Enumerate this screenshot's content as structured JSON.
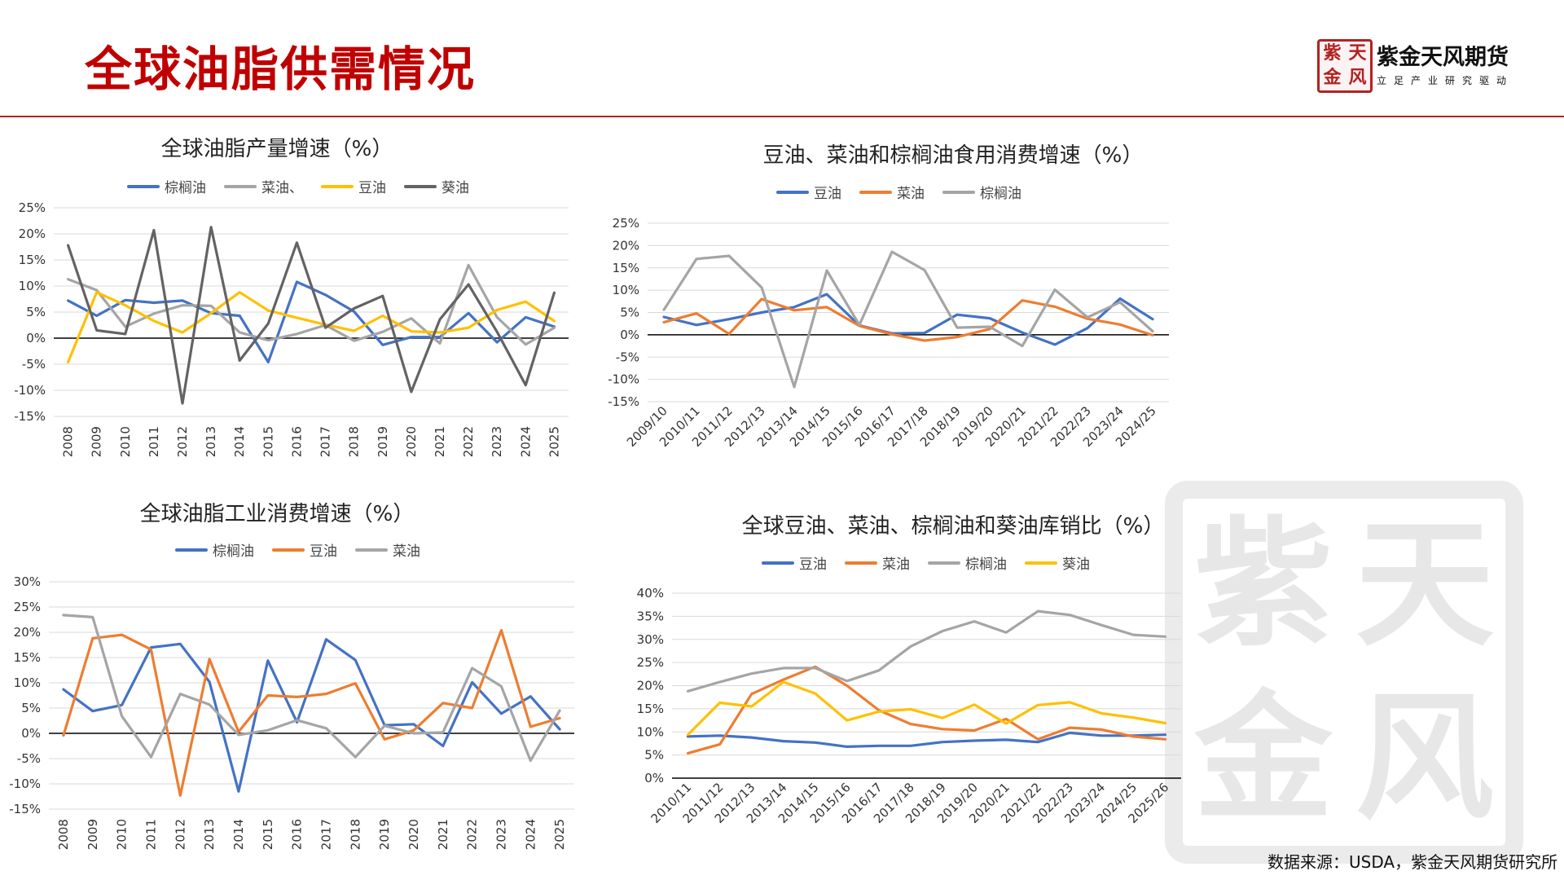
{
  "header": {
    "title": "全球油脂供需情况",
    "logo_seal": [
      "紫",
      "天",
      "金",
      "风"
    ],
    "logo_name": "紫金天风期货",
    "logo_slogan": "立足产业研究驱动"
  },
  "watermark_chars": [
    "紫",
    "天",
    "金",
    "风"
  ],
  "source": "数据来源：USDA，紫金天风期货研究所",
  "colors": {
    "palm": "#4472c4",
    "rapeseed": "#a5a5a5",
    "soy": "#ffc000",
    "sun": "#636363",
    "orange": "#ed7d31",
    "title_red": "#c00000"
  },
  "chart_data": [
    {
      "type": "line",
      "title": "全球油脂产量增速（%）",
      "x": [
        "2008",
        "2009",
        "2010",
        "2011",
        "2012",
        "2013",
        "2014",
        "2015",
        "2016",
        "2017",
        "2018",
        "2019",
        "2020",
        "2021",
        "2022",
        "2023",
        "2024",
        "2025"
      ],
      "ylim": [
        -15,
        25
      ],
      "yticks": [
        "-15%",
        "-10%",
        "-5%",
        "0%",
        "5%",
        "10%",
        "15%",
        "20%",
        "25%"
      ],
      "grid": true,
      "legend": "top",
      "series": [
        {
          "name": "棕榈油",
          "color": "#4472c4",
          "values": [
            7.2,
            4.3,
            7.3,
            6.8,
            7.2,
            4.8,
            4.3,
            -4.6,
            10.8,
            8.3,
            5.1,
            -1.3,
            0.2,
            0.2,
            4.8,
            -0.8,
            4.0,
            2.2
          ]
        },
        {
          "name": "菜油、",
          "color": "#a5a5a5",
          "values": [
            11.3,
            9.2,
            2.2,
            4.7,
            6.3,
            6.2,
            1.1,
            -0.4,
            0.8,
            2.5,
            -0.5,
            1.2,
            3.8,
            -1.0,
            14.0,
            4.0,
            -1.2,
            2.0
          ]
        },
        {
          "name": "豆油",
          "color": "#ffc000",
          "values": [
            -4.6,
            8.8,
            6.3,
            3.3,
            1.1,
            4.8,
            8.8,
            5.3,
            3.9,
            2.6,
            1.4,
            4.3,
            1.3,
            1.1,
            2.0,
            5.4,
            7.0,
            3.3
          ]
        },
        {
          "name": "葵油",
          "color": "#636363",
          "values": [
            17.8,
            1.5,
            0.8,
            20.7,
            -12.5,
            21.3,
            -4.3,
            2.8,
            18.3,
            2.0,
            5.7,
            8.1,
            -10.3,
            3.6,
            10.3,
            1.2,
            -9.0,
            8.7
          ]
        }
      ]
    },
    {
      "type": "line",
      "title": "豆油、菜油和棕榈油食用消费增速（%）",
      "x": [
        "2009/10",
        "2010/11",
        "2011/12",
        "2012/13",
        "2013/14",
        "2014/15",
        "2015/16",
        "2016/17",
        "2017/18",
        "2018/19",
        "2019/20",
        "2020/21",
        "2021/22",
        "2022/23",
        "2023/24",
        "2024/25"
      ],
      "ylim": [
        -15,
        25
      ],
      "yticks": [
        "-15%",
        "-10%",
        "-5%",
        "0%",
        "5%",
        "10%",
        "15%",
        "20%",
        "25%"
      ],
      "grid": true,
      "legend": "top",
      "series": [
        {
          "name": "豆油",
          "color": "#4472c4",
          "values": [
            4.0,
            2.2,
            3.5,
            5.0,
            6.2,
            9.1,
            2.1,
            0.3,
            0.4,
            4.5,
            3.7,
            0.5,
            -2.2,
            1.5,
            8.1,
            3.5
          ]
        },
        {
          "name": "菜油",
          "color": "#ed7d31",
          "values": [
            2.8,
            4.8,
            0.2,
            8.0,
            5.5,
            6.2,
            2.0,
            0.1,
            -1.3,
            -0.5,
            1.3,
            7.7,
            6.3,
            3.6,
            2.3,
            -0.1
          ]
        },
        {
          "name": "棕榈油",
          "color": "#a5a5a5",
          "values": [
            5.6,
            17.0,
            17.7,
            10.6,
            -11.7,
            14.4,
            2.2,
            18.6,
            14.5,
            1.6,
            1.8,
            -2.5,
            10.1,
            3.9,
            7.3,
            0.8
          ]
        }
      ]
    },
    {
      "type": "line",
      "title": "全球油脂工业消费增速（%）",
      "x": [
        "2008",
        "2009",
        "2010",
        "2011",
        "2012",
        "2013",
        "2014",
        "2015",
        "2016",
        "2017",
        "2018",
        "2019",
        "2020",
        "2021",
        "2022",
        "2023",
        "2024",
        "2025"
      ],
      "ylim": [
        -15,
        30
      ],
      "yticks": [
        "-15%",
        "-10%",
        "-5%",
        "0%",
        "5%",
        "10%",
        "15%",
        "20%",
        "25%",
        "30%"
      ],
      "grid": true,
      "legend": "top",
      "series": [
        {
          "name": "棕榈油",
          "color": "#4472c4",
          "values": [
            8.7,
            4.4,
            5.6,
            17.0,
            17.7,
            10.2,
            -11.5,
            14.4,
            2.2,
            18.6,
            14.5,
            1.6,
            1.8,
            -2.5,
            10.1,
            3.9,
            7.3,
            0.8
          ]
        },
        {
          "name": "豆油",
          "color": "#ed7d31",
          "values": [
            -0.4,
            18.8,
            19.5,
            16.6,
            -12.3,
            14.7,
            0.3,
            7.5,
            7.2,
            7.8,
            9.9,
            -1.2,
            0.6,
            6.0,
            5.0,
            20.4,
            1.3,
            3.0
          ]
        },
        {
          "name": "菜油",
          "color": "#a5a5a5",
          "values": [
            23.4,
            23.0,
            3.4,
            -4.7,
            7.8,
            5.7,
            -0.3,
            0.6,
            2.6,
            1.0,
            -4.7,
            1.5,
            0.0,
            0.2,
            12.9,
            9.3,
            -5.4,
            4.5
          ]
        }
      ]
    },
    {
      "type": "line",
      "title": "全球豆油、菜油、棕榈油和葵油库销比（%）",
      "x": [
        "2010/11",
        "2011/12",
        "2012/13",
        "2013/14",
        "2014/15",
        "2015/16",
        "2016/17",
        "2017/18",
        "2018/19",
        "2019/20",
        "2020/21",
        "2021/22",
        "2022/23",
        "2023/24",
        "2024/25",
        "2025/26"
      ],
      "ylim": [
        0,
        40
      ],
      "yticks": [
        "0%",
        "5%",
        "10%",
        "15%",
        "20%",
        "25%",
        "30%",
        "35%",
        "40%"
      ],
      "grid": true,
      "legend": "top",
      "series": [
        {
          "name": "豆油",
          "color": "#4472c4",
          "values": [
            9.0,
            9.2,
            8.8,
            8.0,
            7.7,
            6.8,
            7.0,
            7.0,
            7.8,
            8.1,
            8.3,
            7.8,
            9.8,
            9.2,
            9.2,
            9.4
          ]
        },
        {
          "name": "菜油",
          "color": "#ed7d31",
          "values": [
            5.4,
            7.3,
            18.2,
            21.3,
            24.1,
            20.0,
            14.7,
            11.7,
            10.6,
            10.3,
            12.8,
            8.4,
            10.9,
            10.5,
            9.0,
            8.4
          ]
        },
        {
          "name": "棕榈油",
          "color": "#a5a5a5",
          "values": [
            18.8,
            20.8,
            22.6,
            23.8,
            23.8,
            21.0,
            23.3,
            28.5,
            31.8,
            33.9,
            31.5,
            36.1,
            35.3,
            33.1,
            31.0,
            30.6
          ]
        },
        {
          "name": "葵油",
          "color": "#ffc000",
          "values": [
            9.4,
            16.3,
            15.5,
            20.8,
            18.3,
            12.5,
            14.4,
            14.9,
            13.0,
            15.9,
            11.8,
            15.8,
            16.4,
            14.0,
            13.1,
            11.9
          ]
        }
      ]
    }
  ]
}
